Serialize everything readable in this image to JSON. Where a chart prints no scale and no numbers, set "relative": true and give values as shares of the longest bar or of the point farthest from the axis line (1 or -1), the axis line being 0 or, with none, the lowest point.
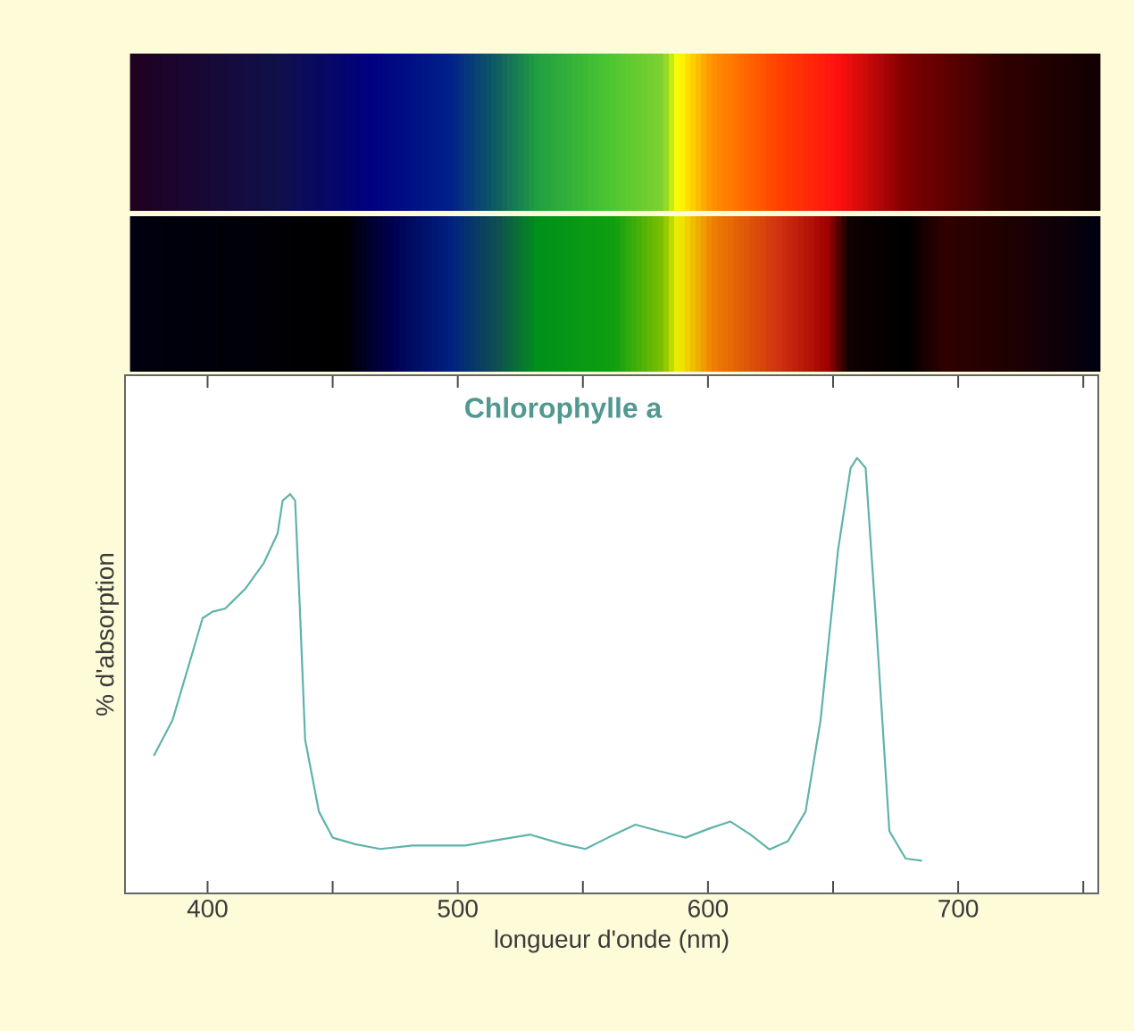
{
  "chart_data": {
    "type": "line",
    "relative": true,
    "xlabel": "longueur d'onde (nm)",
    "ylabel": "% d'absorption",
    "xlim": [
      367,
      756
    ],
    "xticks": [
      400,
      {
        "value": 450,
        "label": null
      },
      500,
      {
        "value": 550,
        "label": null
      },
      600,
      {
        "value": 650,
        "label": null
      },
      700,
      {
        "value": 750,
        "label": null
      }
    ],
    "grid": false,
    "legend": false,
    "marker": "none",
    "line_style": "solid",
    "series": [
      {
        "name": "Chlorophylle a",
        "color": "#5fb3aa",
        "x": [
          378.5,
          386,
          393,
          398,
          402,
          407,
          415,
          422.5,
          428,
          430,
          433,
          435,
          437,
          439,
          444.5,
          450,
          459,
          469,
          482,
          503,
          516,
          529,
          542,
          551,
          560,
          571,
          580.5,
          591,
          601,
          609,
          617,
          624.6,
          632,
          639,
          645,
          652,
          657,
          659.6,
          663,
          667,
          672.5,
          679,
          685.5
        ],
        "values": [
          0.316,
          0.398,
          0.534,
          0.632,
          0.647,
          0.654,
          0.699,
          0.759,
          0.827,
          0.902,
          0.917,
          0.902,
          0.639,
          0.353,
          0.188,
          0.128,
          0.113,
          0.102,
          0.11,
          0.11,
          0.123,
          0.135,
          0.113,
          0.102,
          0.128,
          0.158,
          0.143,
          0.128,
          0.15,
          0.165,
          0.135,
          0.101,
          0.12,
          0.188,
          0.398,
          0.789,
          0.977,
          1.0,
          0.977,
          0.639,
          0.143,
          0.08,
          0.075
        ]
      }
    ]
  }
}
